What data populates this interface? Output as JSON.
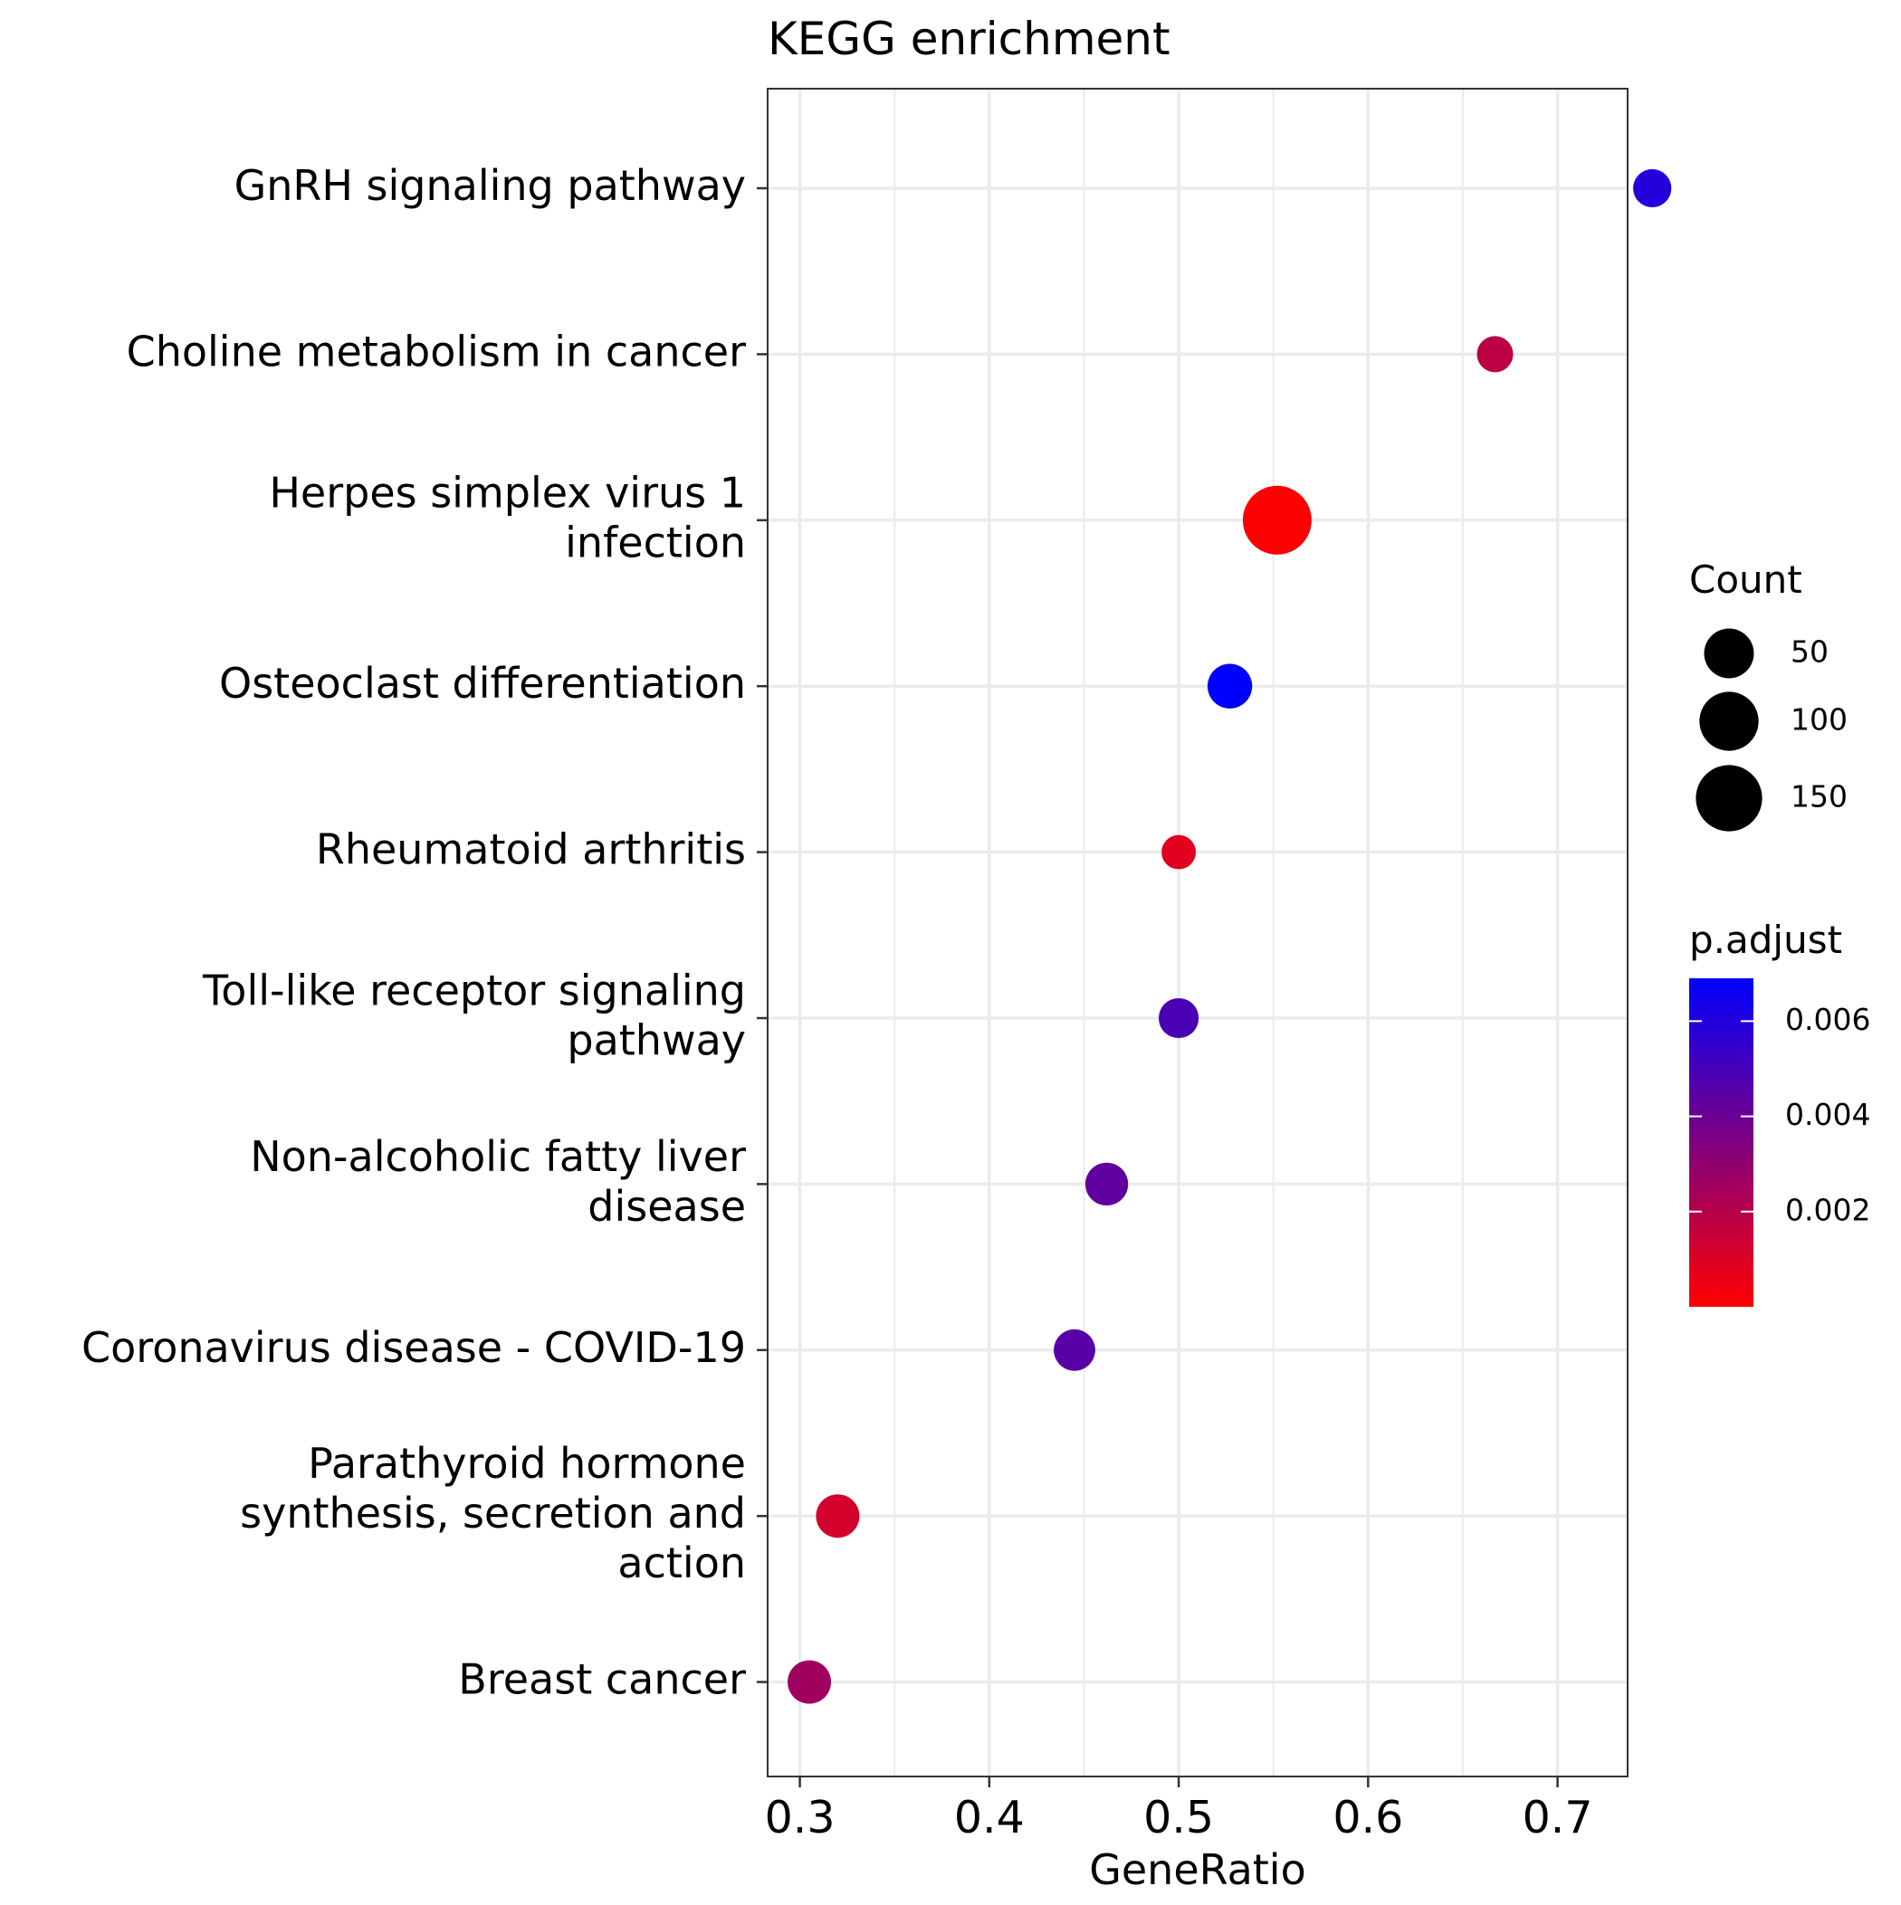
{
  "chart_data": {
    "type": "scatter",
    "title": "KEGG enrichment",
    "xlabel": "GeneRatio",
    "ylabel": "",
    "xlim": [
      0.283,
      0.737
    ],
    "xticks": [
      0.3,
      0.4,
      0.5,
      0.6,
      0.7
    ],
    "xtick_labels": [
      "0.3",
      "0.4",
      "0.5",
      "0.6",
      "0.7"
    ],
    "grid": true,
    "points": [
      {
        "label": "GnRH signaling pathway",
        "label_lines": [
          "GnRH signaling pathway"
        ],
        "gene_ratio": 0.75,
        "count": 12,
        "p_adjust": 0.0059
      },
      {
        "label": "Choline metabolism in cancer",
        "label_lines": [
          "Choline metabolism in cancer"
        ],
        "gene_ratio": 0.667,
        "count": 8,
        "p_adjust": 0.0018
      },
      {
        "label": "Herpes simplex virus 1 infection",
        "label_lines": [
          "Herpes simplex virus 1",
          "infection"
        ],
        "gene_ratio": 0.552,
        "count": 170,
        "p_adjust": 5e-05
      },
      {
        "label": "Osteoclast differentiation",
        "label_lines": [
          "Osteoclast differentiation"
        ],
        "gene_ratio": 0.527,
        "count": 30,
        "p_adjust": 0.0069
      },
      {
        "label": "Rheumatoid arthritis",
        "label_lines": [
          "Rheumatoid arthritis"
        ],
        "gene_ratio": 0.5,
        "count": 5,
        "p_adjust": 0.0008
      },
      {
        "label": "Toll-like receptor signaling pathway",
        "label_lines": [
          "Toll-like receptor signaling",
          "pathway"
        ],
        "gene_ratio": 0.5,
        "count": 16,
        "p_adjust": 0.0049
      },
      {
        "label": "Non-alcoholic fatty liver disease",
        "label_lines": [
          "Non-alcoholic fatty liver",
          "disease"
        ],
        "gene_ratio": 0.462,
        "count": 24,
        "p_adjust": 0.0043
      },
      {
        "label": "Coronavirus disease - COVID-19",
        "label_lines": [
          "Coronavirus disease - COVID-19"
        ],
        "gene_ratio": 0.445,
        "count": 20,
        "p_adjust": 0.0045
      },
      {
        "label": "Parathyroid hormone synthesis, secretion and action",
        "label_lines": [
          "Parathyroid hormone",
          "synthesis, secretion and",
          "action"
        ],
        "gene_ratio": 0.32,
        "count": 26,
        "p_adjust": 0.0012
      },
      {
        "label": "Breast cancer",
        "label_lines": [
          "Breast cancer"
        ],
        "gene_ratio": 0.305,
        "count": 26,
        "p_adjust": 0.0026
      }
    ],
    "size_legend": {
      "title": "Count",
      "entries": [
        {
          "label": "50",
          "value": 50
        },
        {
          "label": "100",
          "value": 100
        },
        {
          "label": "150",
          "value": 150
        }
      ]
    },
    "color_legend": {
      "title": "p.adjust",
      "range": [
        0.0,
        0.0069
      ],
      "low_color": "#FF0000",
      "high_color": "#0000FF",
      "ticks": [
        {
          "label": "0.006",
          "value": 0.006
        },
        {
          "label": "0.004",
          "value": 0.004
        },
        {
          "label": "0.002",
          "value": 0.002
        }
      ]
    }
  }
}
